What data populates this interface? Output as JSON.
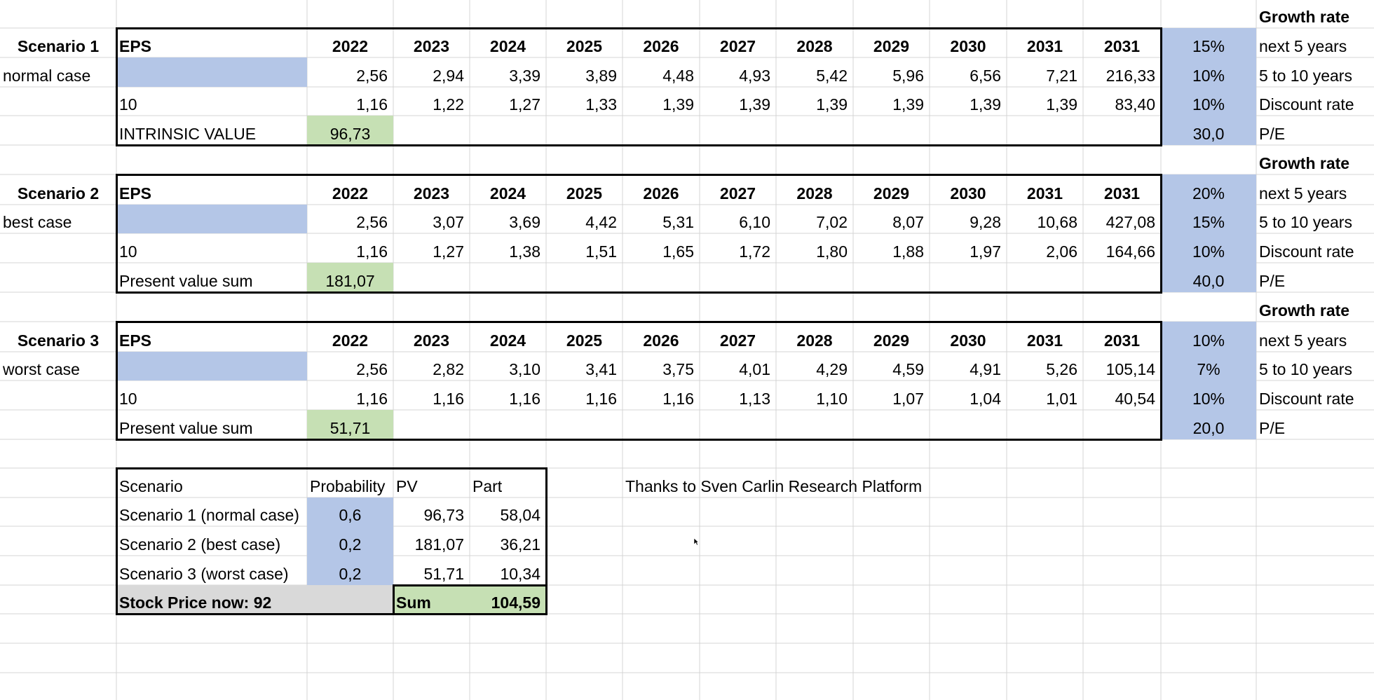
{
  "scenarios": [
    {
      "name": "Scenario 1",
      "case": "normal case",
      "eps_label": "EPS",
      "years": [
        "2022",
        "2023",
        "2024",
        "2025",
        "2026",
        "2027",
        "2028",
        "2029",
        "2030",
        "2031",
        "2031"
      ],
      "eps_values": [
        "2,56",
        "2,94",
        "3,39",
        "3,89",
        "4,48",
        "4,93",
        "5,42",
        "5,96",
        "6,56",
        "7,21",
        "216,33"
      ],
      "discount_years": "10",
      "pv_values": [
        "1,16",
        "1,22",
        "1,27",
        "1,33",
        "1,39",
        "1,39",
        "1,39",
        "1,39",
        "1,39",
        "1,39",
        "83,40"
      ],
      "sum_label": "INTRINSIC VALUE",
      "sum_value": "96,73",
      "growth_header": "Growth rate",
      "params": [
        {
          "value": "15%",
          "label": "next 5 years"
        },
        {
          "value": "10%",
          "label": "5 to 10 years"
        },
        {
          "value": "10%",
          "label": "Discount rate"
        },
        {
          "value": "30,0",
          "label": "P/E"
        }
      ]
    },
    {
      "name": "Scenario 2",
      "case": "best case",
      "eps_label": "EPS",
      "years": [
        "2022",
        "2023",
        "2024",
        "2025",
        "2026",
        "2027",
        "2028",
        "2029",
        "2030",
        "2031",
        "2031"
      ],
      "eps_values": [
        "2,56",
        "3,07",
        "3,69",
        "4,42",
        "5,31",
        "6,10",
        "7,02",
        "8,07",
        "9,28",
        "10,68",
        "427,08"
      ],
      "discount_years": "10",
      "pv_values": [
        "1,16",
        "1,27",
        "1,38",
        "1,51",
        "1,65",
        "1,72",
        "1,80",
        "1,88",
        "1,97",
        "2,06",
        "164,66"
      ],
      "sum_label": "Present value sum",
      "sum_value": "181,07",
      "growth_header": "Growth rate",
      "params": [
        {
          "value": "20%",
          "label": "next 5 years"
        },
        {
          "value": "15%",
          "label": "5 to 10 years"
        },
        {
          "value": "10%",
          "label": "Discount rate"
        },
        {
          "value": "40,0",
          "label": "P/E"
        }
      ]
    },
    {
      "name": "Scenario 3",
      "case": "worst case",
      "eps_label": "EPS",
      "years": [
        "2022",
        "2023",
        "2024",
        "2025",
        "2026",
        "2027",
        "2028",
        "2029",
        "2030",
        "2031",
        "2031"
      ],
      "eps_values": [
        "2,56",
        "2,82",
        "3,10",
        "3,41",
        "3,75",
        "4,01",
        "4,29",
        "4,59",
        "4,91",
        "5,26",
        "105,14"
      ],
      "discount_years": "10",
      "pv_values": [
        "1,16",
        "1,16",
        "1,16",
        "1,16",
        "1,16",
        "1,13",
        "1,10",
        "1,07",
        "1,04",
        "1,01",
        "40,54"
      ],
      "sum_label": "Present value sum",
      "sum_value": "51,71",
      "growth_header": "Growth rate",
      "params": [
        {
          "value": "10%",
          "label": "next 5 years"
        },
        {
          "value": "7%",
          "label": "5 to 10 years"
        },
        {
          "value": "10%",
          "label": "Discount rate"
        },
        {
          "value": "20,0",
          "label": "P/E"
        }
      ]
    }
  ],
  "summary": {
    "headers": [
      "Scenario",
      "Probability",
      "PV",
      "Part"
    ],
    "rows": [
      {
        "scenario": "Scenario 1 (normal case)",
        "probability": "0,6",
        "pv": "96,73",
        "part": "58,04"
      },
      {
        "scenario": "Scenario 2 (best case)",
        "probability": "0,2",
        "pv": "181,07",
        "part": "36,21"
      },
      {
        "scenario": "Scenario 3 (worst case)",
        "probability": "0,2",
        "pv": "51,71",
        "part": "10,34"
      }
    ],
    "stock_price_label": "Stock Price now: 92",
    "sum_label": "Sum",
    "sum_value": "104,59"
  },
  "credit_text": "Thanks to Sven Carlin Research Platform",
  "colors": {
    "input_blue": "#b4c6e7",
    "result_green": "#c6e0b4",
    "stock_gray": "#d9d9d9",
    "gridline": "#d4d4d4"
  }
}
